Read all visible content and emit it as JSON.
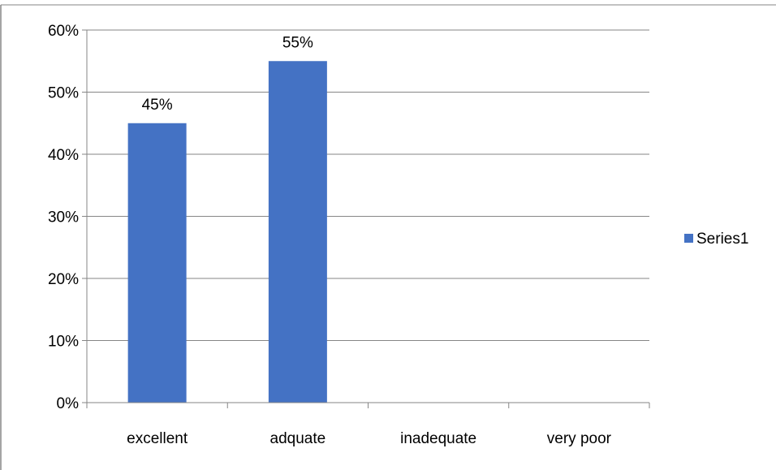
{
  "chart_data": {
    "type": "bar",
    "title": "",
    "xlabel": "",
    "ylabel": "",
    "categories": [
      "excellent",
      "adquate",
      "inadequate",
      "very poor"
    ],
    "series": [
      {
        "name": "Series1",
        "values": [
          45,
          55,
          0,
          0
        ],
        "color": "#4472c4"
      }
    ],
    "data_labels": [
      "45%",
      "55%",
      "",
      ""
    ],
    "ylim": [
      0,
      60
    ],
    "y_ticks": [
      0,
      10,
      20,
      30,
      40,
      50,
      60
    ],
    "y_tick_labels": [
      "0%",
      "10%",
      "20%",
      "30%",
      "40%",
      "50%",
      "60%"
    ],
    "grid": true,
    "legend_position": "right",
    "colors": {
      "bar": "#4472c4",
      "grid": "#868686",
      "axis": "#868686",
      "frame": "#868686"
    }
  }
}
